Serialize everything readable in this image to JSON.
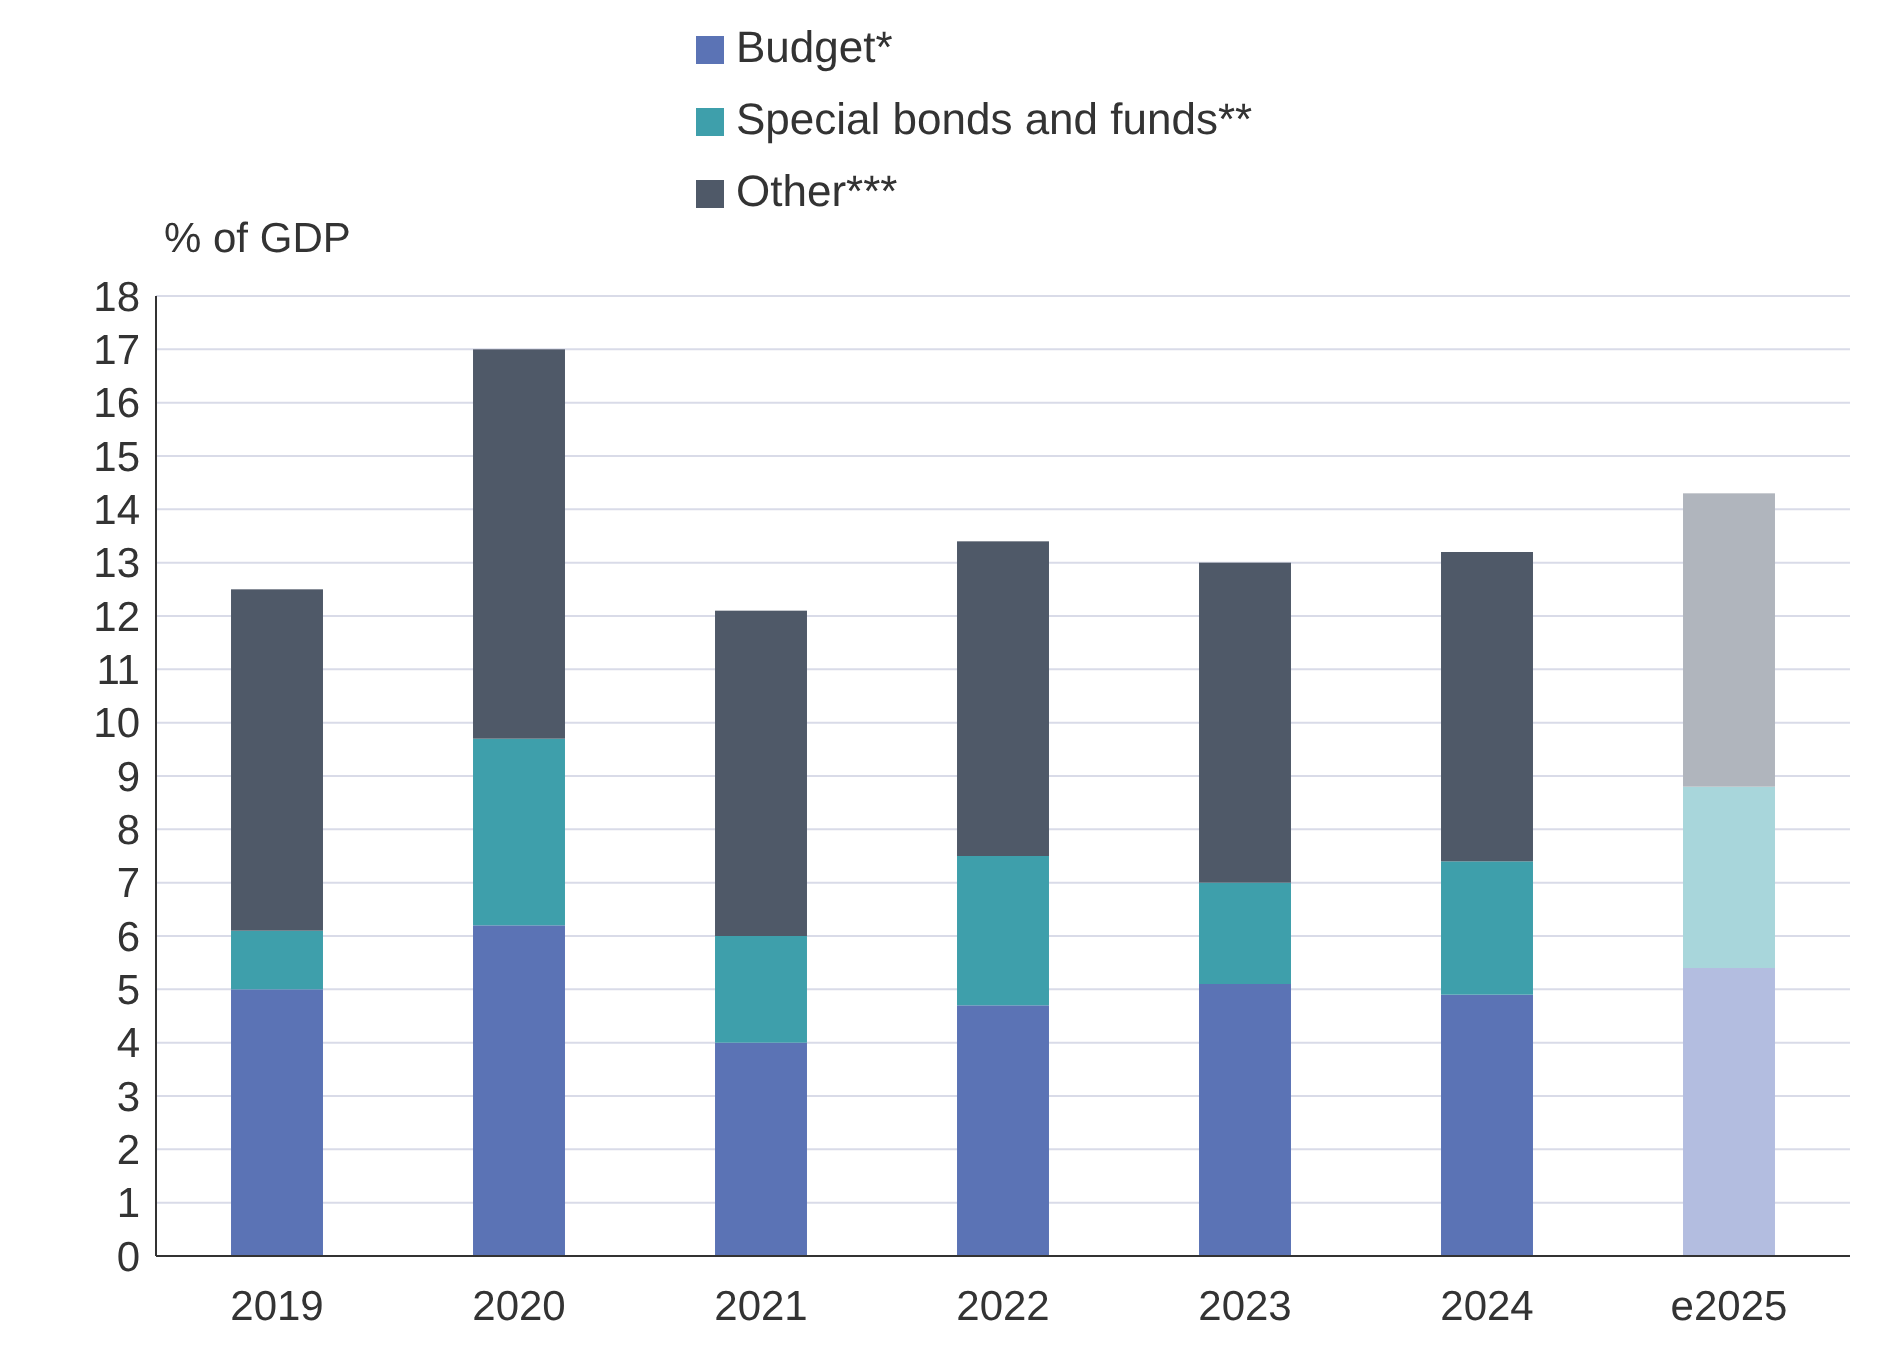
{
  "chart_data": {
    "type": "bar",
    "ylabel": "% of GDP",
    "stacked": true,
    "legend": "top",
    "grid": "y",
    "categories": [
      "2019",
      "2020",
      "2021",
      "2022",
      "2023",
      "2024",
      "e2025"
    ],
    "series": [
      {
        "name": "Budget*",
        "color": "#5b73b5",
        "colors": [
          "#5b73b5",
          "#5b73b5",
          "#5b73b5",
          "#5b73b5",
          "#5b73b5",
          "#5b73b5",
          "#b3bde0"
        ],
        "values": [
          5.0,
          6.2,
          4.0,
          4.7,
          5.1,
          4.9,
          5.4
        ]
      },
      {
        "name": "Special bonds and funds**",
        "color": "#3e9fab",
        "colors": [
          "#3e9fab",
          "#3e9fab",
          "#3e9fab",
          "#3e9fab",
          "#3e9fab",
          "#3e9fab",
          "#a8d6db"
        ],
        "values": [
          1.1,
          3.5,
          2.0,
          2.8,
          1.9,
          2.5,
          3.4
        ]
      },
      {
        "name": "Other***",
        "color": "#4f5968",
        "colors": [
          "#4f5968",
          "#4f5968",
          "#4f5968",
          "#4f5968",
          "#4f5968",
          "#4f5968",
          "#b0b5bd"
        ],
        "values": [
          6.4,
          7.3,
          6.1,
          5.9,
          6.0,
          5.8,
          5.5
        ]
      }
    ],
    "ylim": [
      0,
      18
    ],
    "yticks": [
      0,
      1,
      2,
      3,
      4,
      5,
      6,
      7,
      8,
      9,
      10,
      11,
      12,
      13,
      14,
      15,
      16,
      17,
      18
    ]
  }
}
